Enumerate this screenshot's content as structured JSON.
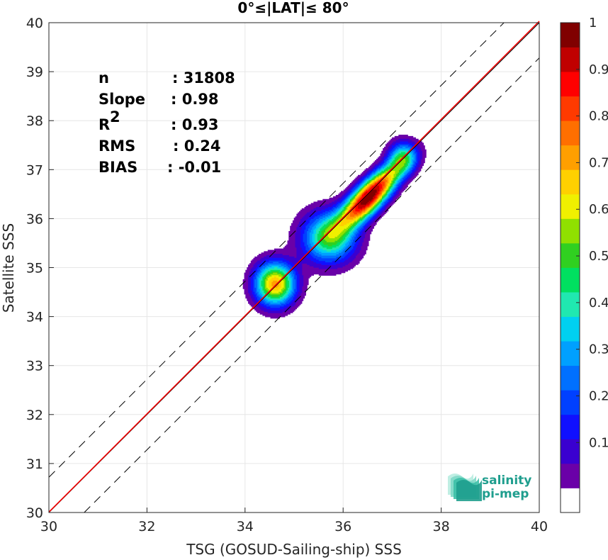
{
  "chart_data": {
    "type": "heatmap",
    "title": "0°≤|LAT|≤ 80°",
    "xlabel": "TSG (GOSUD-Sailing-ship) SSS",
    "ylabel": "Satellite SSS",
    "xlim": [
      30,
      40
    ],
    "ylim": [
      30,
      40
    ],
    "xticks": [
      "30",
      "32",
      "34",
      "36",
      "38",
      "40"
    ],
    "yticks": [
      "30",
      "31",
      "32",
      "33",
      "34",
      "35",
      "36",
      "37",
      "38",
      "39",
      "40"
    ],
    "grid": true,
    "stats": [
      {
        "name": "n",
        "value": ": 31808"
      },
      {
        "name": "Slope",
        "value": ": 0.98"
      },
      {
        "name": "R",
        "sup": "2",
        "value": ": 0.93"
      },
      {
        "name": "RMS",
        "value": ": 0.24"
      },
      {
        "name": "BIAS",
        "value": ": -0.01"
      }
    ],
    "lines": {
      "identity": {
        "x": [
          30,
          40
        ],
        "y": [
          30,
          40
        ],
        "color": "#000000"
      },
      "dashed_offset": 0.72,
      "regression": {
        "slope": 0.98,
        "bias": -0.01,
        "color": "#ff0000"
      }
    },
    "density_peaks": [
      {
        "x": 34.6,
        "y": 34.65,
        "sx": 0.28,
        "sy": 0.3,
        "a": 0.72
      },
      {
        "x": 35.7,
        "y": 35.6,
        "sx": 0.38,
        "sy": 0.36,
        "a": 0.5
      },
      {
        "x": 36.45,
        "y": 36.35,
        "sx": 0.38,
        "sy": 0.38,
        "a": 0.9,
        "rho": 0.75
      },
      {
        "x": 37.2,
        "y": 37.25,
        "sx": 0.2,
        "sy": 0.22,
        "a": 0.35
      },
      {
        "x": 36.9,
        "y": 36.85,
        "sx": 0.35,
        "sy": 0.32,
        "a": 0.3,
        "rho": 0.75
      }
    ],
    "colorbar": {
      "ticks": [
        "0.1",
        "0.2",
        "0.3",
        "0.4",
        "0.5",
        "0.6",
        "0.7",
        "0.8",
        "0.9",
        "1"
      ],
      "levels": [
        0,
        0.05,
        0.1,
        0.15,
        0.2,
        0.25,
        0.3,
        0.35,
        0.4,
        0.45,
        0.5,
        0.55,
        0.6,
        0.65,
        0.7,
        0.75,
        0.8,
        0.85,
        0.9,
        0.95,
        1.0
      ],
      "colors": [
        "#ffffff",
        "#6a00a8",
        "#3a00d0",
        "#1010ff",
        "#0040ff",
        "#0070ff",
        "#00a0ff",
        "#00d0f0",
        "#20e8b0",
        "#00e060",
        "#30d020",
        "#90e000",
        "#f0f000",
        "#ffd000",
        "#ff9f00",
        "#ff6f00",
        "#ff3a00",
        "#ff0000",
        "#c00000",
        "#800000"
      ]
    },
    "logo": {
      "line1": "salinity",
      "line2": "pi-mep"
    }
  }
}
